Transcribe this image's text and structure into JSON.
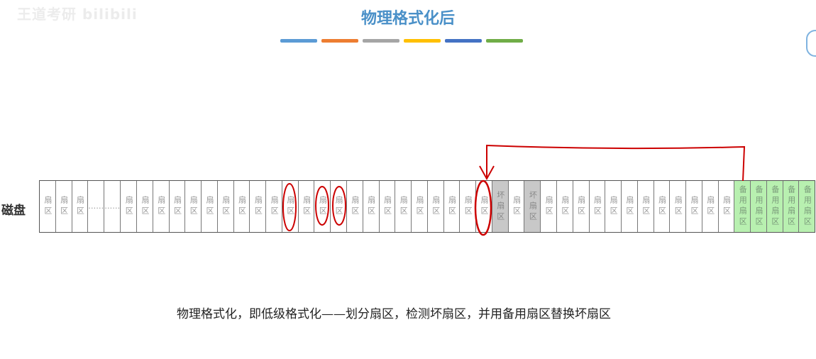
{
  "watermark": "王道考研 bilibili",
  "title": "物理格式化后",
  "color_bars": [
    "#5b9bd5",
    "#ed7d31",
    "#a5a5a5",
    "#ffc000",
    "#4472c4",
    "#70ad47"
  ],
  "disk_label": "磁盘",
  "sector_label": "扇区",
  "bad_label": "坏扇区",
  "spare_label": "备用扇区",
  "ellipsis": "……",
  "cells": [
    "sector",
    "sector",
    "sector",
    "dots",
    "dots",
    "sector",
    "sector",
    "sector",
    "sector",
    "sector",
    "sector",
    "sector",
    "sector",
    "sector",
    "sector",
    "sector",
    "sector",
    "sector",
    "sector",
    "sector",
    "sector",
    "sector",
    "sector",
    "sector",
    "sector",
    "sector",
    "sector",
    "sector",
    "bad",
    "sector",
    "bad",
    "sector",
    "sector",
    "sector",
    "sector",
    "sector",
    "sector",
    "sector",
    "sector",
    "sector",
    "sector",
    "sector",
    "sector",
    "spare",
    "spare",
    "spare",
    "spare",
    "spare"
  ],
  "caption": "物理格式化，即低级格式化——划分扇区，检测坏扇区，并用备用扇区替换坏扇区",
  "colors": {
    "annotation": "#cc0000",
    "title": "#4a90c8",
    "bad": "#c8c8c8",
    "spare": "#b8f0b0"
  }
}
